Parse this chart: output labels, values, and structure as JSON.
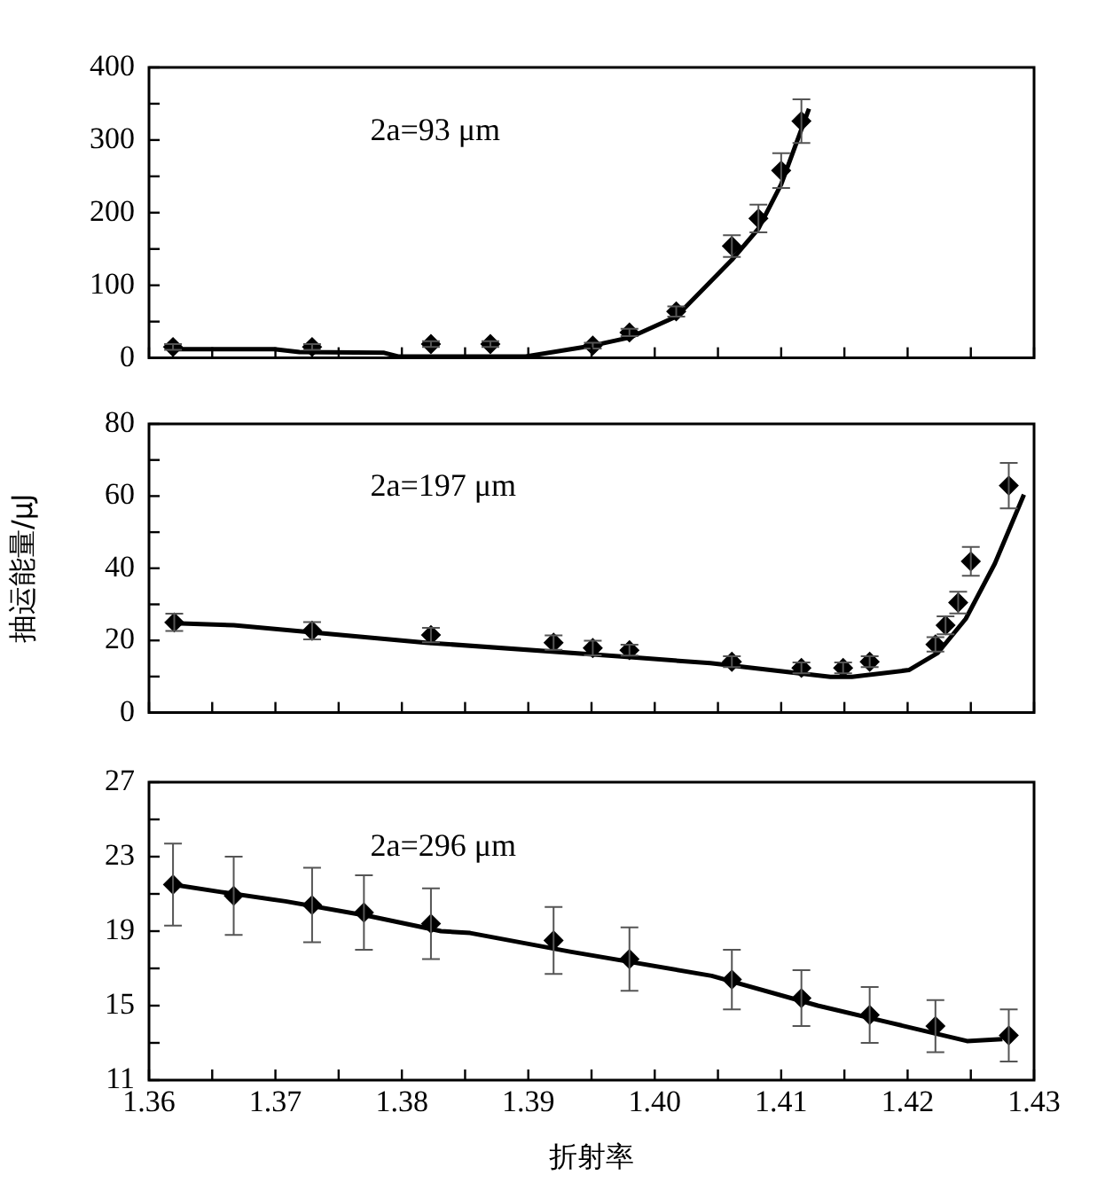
{
  "chart_data": [
    {
      "type": "scatter",
      "annotations": [
        "2a=93 μm"
      ],
      "xlim": [
        1.36,
        1.43
      ],
      "xticks": [
        1.36,
        {
          "value": 1.365,
          "label": null
        },
        1.37,
        {
          "value": 1.375,
          "label": null
        },
        1.38,
        {
          "value": 1.385,
          "label": null
        },
        1.39,
        {
          "value": 1.395,
          "label": null
        },
        1.4,
        {
          "value": 1.405,
          "label": null
        },
        1.41,
        {
          "value": 1.415,
          "label": null
        },
        1.42,
        {
          "value": 1.425,
          "label": null
        },
        1.43
      ],
      "ylim": [
        0,
        400
      ],
      "yticks": [
        0,
        {
          "value": 50,
          "label": null
        },
        100,
        {
          "value": 150,
          "label": null
        },
        200,
        {
          "value": 250,
          "label": null
        },
        300,
        {
          "value": 350,
          "label": null
        },
        400
      ],
      "tick_labels": "y",
      "series": [
        {
          "type": "scatter",
          "color": "#000000",
          "marker": "diamond",
          "x": [
            1.3619,
            1.3729,
            1.3823,
            1.387,
            1.3951,
            1.398,
            1.4017,
            1.4061,
            1.4082,
            1.41,
            1.4116
          ],
          "values": [
            15,
            15,
            19,
            19,
            17,
            35,
            64,
            154,
            192,
            258,
            326
          ],
          "errors": [
            4,
            4,
            4,
            4,
            4,
            5,
            7,
            15,
            19,
            24,
            30
          ]
        },
        {
          "type": "line",
          "color": "#000000",
          "marker": "none",
          "x": [
            1.3619,
            1.3699,
            1.3719,
            1.3786,
            1.3797,
            1.3898,
            1.3951,
            1.398,
            1.4017,
            1.4061,
            1.4082,
            1.41,
            1.4122
          ],
          "values": [
            12,
            12,
            8,
            7,
            2,
            2,
            17,
            28,
            57,
            135,
            178,
            239,
            343
          ]
        }
      ]
    },
    {
      "type": "scatter",
      "annotations": [
        "2a=197 μm"
      ],
      "ylabel": "抽运能量/μJ",
      "xlim": [
        1.36,
        1.43
      ],
      "xticks": [
        1.36,
        {
          "value": 1.365,
          "label": null
        },
        1.37,
        {
          "value": 1.375,
          "label": null
        },
        1.38,
        {
          "value": 1.385,
          "label": null
        },
        1.39,
        {
          "value": 1.395,
          "label": null
        },
        1.4,
        {
          "value": 1.405,
          "label": null
        },
        1.41,
        {
          "value": 1.415,
          "label": null
        },
        1.42,
        {
          "value": 1.425,
          "label": null
        },
        1.43
      ],
      "ylim": [
        0,
        80
      ],
      "yticks": [
        0,
        {
          "value": 10,
          "label": null
        },
        20,
        {
          "value": 30,
          "label": null
        },
        40,
        {
          "value": 50,
          "label": null
        },
        60,
        {
          "value": 70,
          "label": null
        },
        80
      ],
      "tick_labels": "y",
      "series": [
        {
          "type": "scatter",
          "color": "#000000",
          "marker": "diamond",
          "x": [
            1.362,
            1.3729,
            1.3823,
            1.392,
            1.3951,
            1.398,
            1.4061,
            1.4116,
            1.4149,
            1.417,
            1.4222,
            1.423,
            1.424,
            1.425,
            1.428
          ],
          "values": [
            25,
            22.7,
            21.5,
            19.4,
            17.9,
            17.3,
            14.1,
            12.4,
            12.4,
            14.1,
            18.9,
            24.2,
            30.5,
            41.9,
            62.9
          ],
          "errors": [
            2.4,
            2.4,
            2,
            2,
            2,
            1.5,
            1.5,
            1.5,
            1.5,
            1.5,
            2,
            2.5,
            3,
            4,
            6.3
          ]
        },
        {
          "type": "line",
          "color": "#000000",
          "marker": "none",
          "x": [
            1.362,
            1.3667,
            1.3819,
            1.3971,
            1.4044,
            1.4139,
            1.4156,
            1.4201,
            1.4224,
            1.4246,
            1.4269,
            1.4292
          ],
          "values": [
            24.8,
            24.2,
            19.4,
            15.6,
            13.7,
            9.9,
            9.9,
            11.8,
            16.6,
            26,
            41.3,
            60.4
          ]
        }
      ]
    },
    {
      "type": "scatter",
      "annotations": [
        "2a=296 μm"
      ],
      "xlabel": "折射率",
      "xlim": [
        1.36,
        1.43
      ],
      "xticks": [
        1.36,
        {
          "value": 1.365,
          "label": null
        },
        1.37,
        {
          "value": 1.375,
          "label": null
        },
        1.38,
        {
          "value": 1.385,
          "label": null
        },
        1.39,
        {
          "value": 1.395,
          "label": null
        },
        {
          "value": 1.4,
          "label": "1.40"
        },
        {
          "value": 1.405,
          "label": null
        },
        1.41,
        {
          "value": 1.415,
          "label": null
        },
        1.42,
        {
          "value": 1.425,
          "label": null
        },
        1.43
      ],
      "ylim": [
        11,
        27
      ],
      "yticks": [
        11,
        {
          "value": 13,
          "label": null
        },
        15,
        {
          "value": 17,
          "label": null
        },
        19,
        {
          "value": 21,
          "label": null
        },
        23,
        {
          "value": 25,
          "label": null
        },
        27
      ],
      "series": [
        {
          "type": "scatter",
          "color": "#000000",
          "marker": "diamond",
          "x": [
            1.3619,
            1.3667,
            1.3729,
            1.377,
            1.3823,
            1.392,
            1.398,
            1.4061,
            1.4116,
            1.417,
            1.4222,
            1.428
          ],
          "values": [
            21.5,
            20.9,
            20.4,
            20,
            19.4,
            18.5,
            17.5,
            16.4,
            15.4,
            14.5,
            13.9,
            13.4
          ],
          "errors": [
            2.2,
            2.1,
            2,
            2,
            1.9,
            1.8,
            1.7,
            1.6,
            1.5,
            1.5,
            1.4,
            1.4
          ]
        },
        {
          "type": "line",
          "color": "#000000",
          "marker": "none",
          "x": [
            1.3619,
            1.3657,
            1.3708,
            1.3775,
            1.3831,
            1.3854,
            1.3933,
            1.4045,
            1.4129,
            1.4185,
            1.4247,
            1.4275
          ],
          "values": [
            21.5,
            21.1,
            20.6,
            19.8,
            19,
            18.9,
            17.9,
            16.6,
            15,
            14.1,
            13.1,
            13.2
          ]
        }
      ]
    }
  ]
}
